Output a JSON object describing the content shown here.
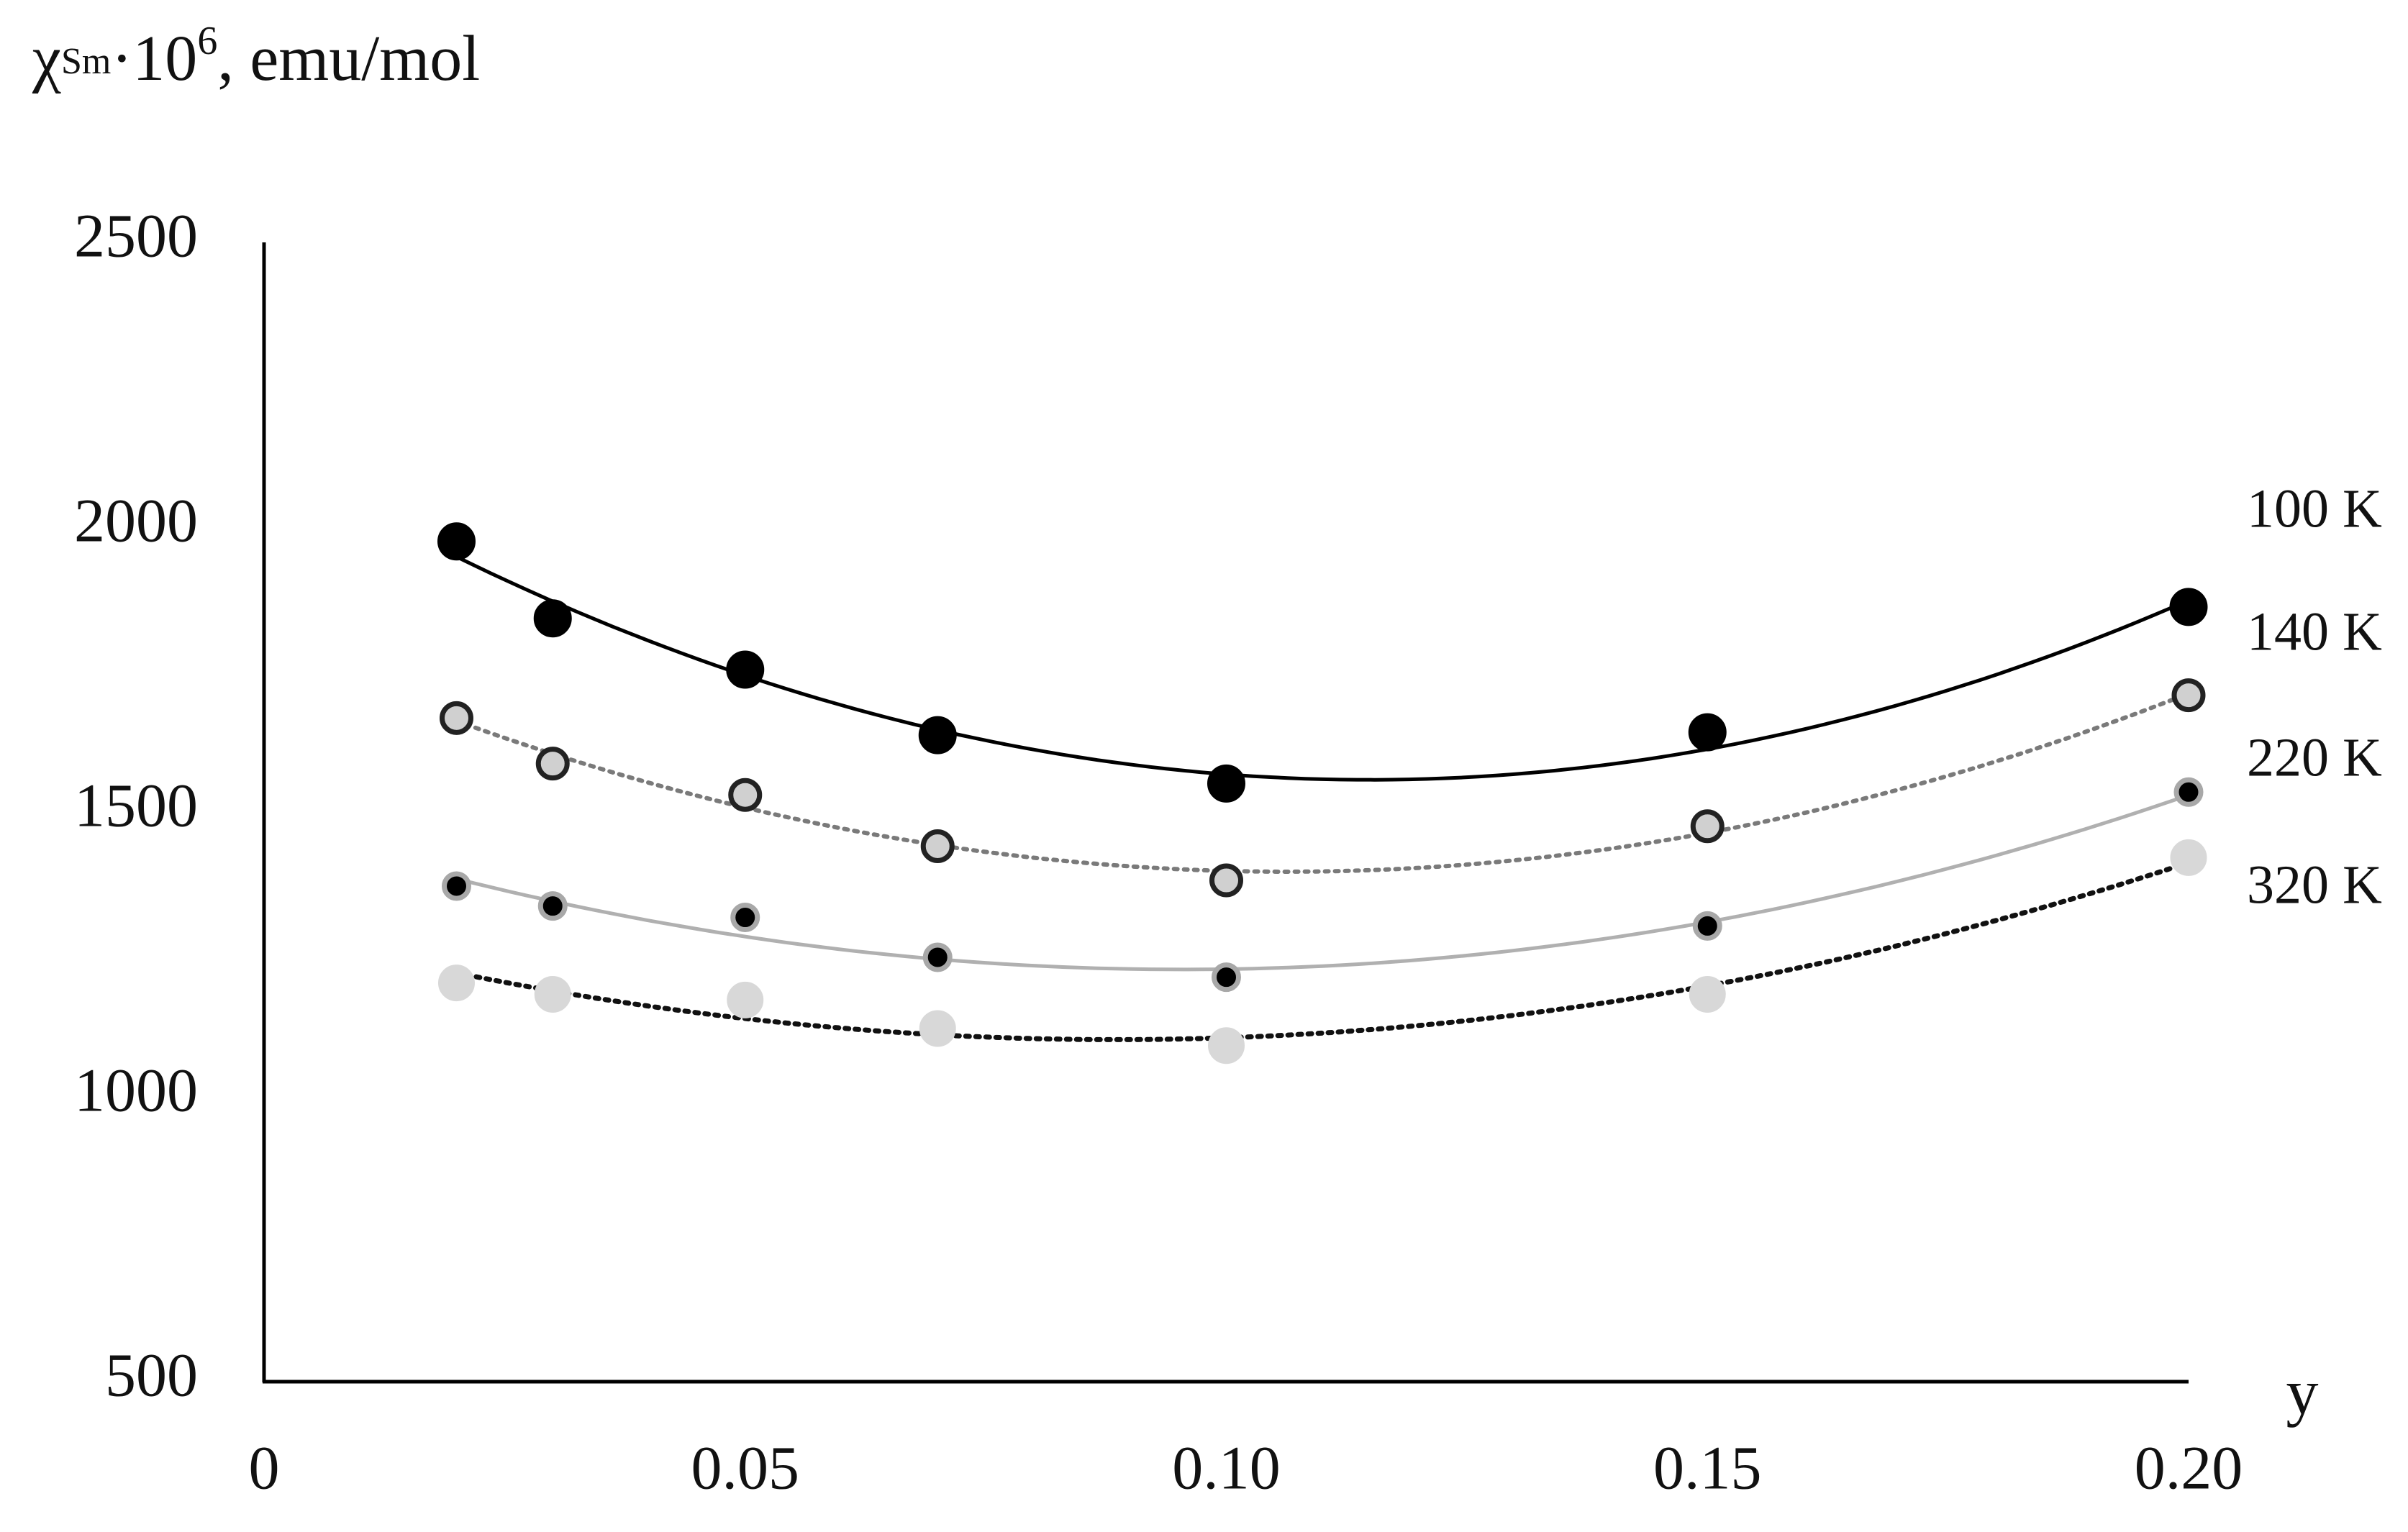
{
  "chart_data": {
    "type": "scatter",
    "y_label": [
      "χ",
      "Sm",
      "·10",
      "6",
      ", emu/mol"
    ],
    "x_label": "y",
    "xlim": [
      0,
      0.2
    ],
    "ylim": [
      500,
      2500
    ],
    "xticks": [
      0,
      0.05,
      {
        "value": 0.1,
        "label": "0.10"
      },
      0.15,
      {
        "value": 0.2,
        "label": "0.20"
      }
    ],
    "yticks": [
      500,
      1000,
      1500,
      2000,
      2500
    ],
    "x": [
      0.02,
      0.03,
      0.05,
      0.07,
      0.1,
      0.15,
      0.2
    ],
    "series": [
      {
        "name": "100 K",
        "color": "#000000",
        "values": [
          1975,
          1840,
          1750,
          1635,
          1550,
          1640,
          1860
        ]
      },
      {
        "name": "140 K",
        "color": "#7a7a7a",
        "values": [
          1665,
          1585,
          1530,
          1440,
          1380,
          1475,
          1705
        ]
      },
      {
        "name": "220 K",
        "color": "#b0b0b0",
        "values": [
          1370,
          1335,
          1315,
          1245,
          1210,
          1300,
          1535
        ]
      },
      {
        "name": "320 K",
        "color": "#111111",
        "values": [
          1200,
          1180,
          1170,
          1120,
          1090,
          1180,
          1420
        ]
      }
    ]
  }
}
